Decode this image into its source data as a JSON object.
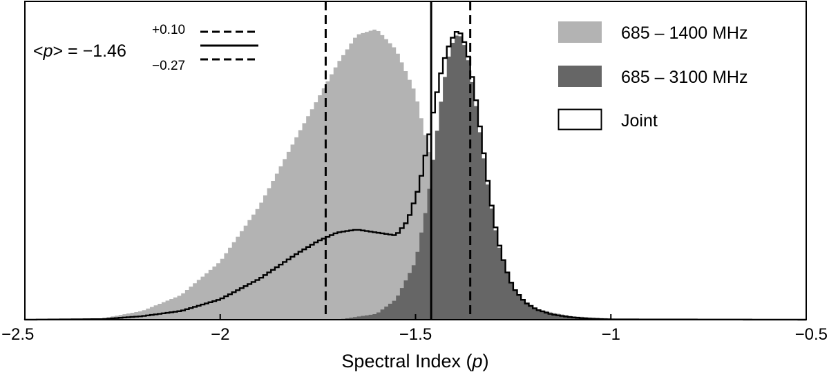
{
  "chart_data": {
    "type": "histogram",
    "xlabel": "Spectral Index",
    "xlabel_var": "p",
    "xlim": [
      -2.5,
      -0.5
    ],
    "xticks": [
      -2.5,
      -2,
      -1.5,
      -1,
      -0.5
    ],
    "xtick_labels": [
      "−2.5",
      "−2",
      "−1.5",
      "−1",
      "−0.5"
    ],
    "yticks_shown": false,
    "legend_position": "top-right",
    "annotation": {
      "lhs_open": "<",
      "lhs_var": "p",
      "lhs_close": "> = ",
      "value": "−1.46",
      "upper": "+0.10",
      "lower": "−0.27",
      "median_x": -1.46,
      "lower_bound_x": -1.73,
      "upper_bound_x": -1.36
    },
    "series": [
      {
        "name": "685 – 1400 MHz",
        "style": "filled",
        "color": "#b3b3b3",
        "x": [
          -2.5,
          -2.3,
          -2.2,
          -2.1,
          -2.0,
          -1.9,
          -1.8,
          -1.75,
          -1.7,
          -1.65,
          -1.6,
          -1.55,
          -1.5,
          -1.45,
          -1.4,
          -1.35,
          -1.3,
          -1.25,
          -1.2,
          -1.15,
          -1.1,
          -1.0,
          -0.9,
          -0.5
        ],
        "y": [
          0.0,
          0.005,
          0.03,
          0.085,
          0.2,
          0.39,
          0.64,
          0.76,
          0.88,
          0.98,
          1.0,
          0.93,
          0.78,
          0.49,
          0.3,
          0.19,
          0.12,
          0.07,
          0.04,
          0.025,
          0.012,
          0.004,
          0.001,
          0.0
        ]
      },
      {
        "name": "685 – 3100 MHz",
        "style": "filled",
        "color": "#666666",
        "x": [
          -2.5,
          -1.7,
          -1.6,
          -1.55,
          -1.5,
          -1.47,
          -1.45,
          -1.43,
          -1.41,
          -1.39,
          -1.37,
          -1.35,
          -1.33,
          -1.31,
          -1.29,
          -1.27,
          -1.25,
          -1.22,
          -1.19,
          -1.15,
          -1.1,
          -1.05,
          -1.0,
          -0.5
        ],
        "y": [
          0.0,
          0.0,
          0.02,
          0.07,
          0.2,
          0.4,
          0.6,
          0.8,
          0.94,
          0.99,
          0.93,
          0.78,
          0.6,
          0.42,
          0.27,
          0.18,
          0.11,
          0.06,
          0.035,
          0.018,
          0.008,
          0.003,
          0.001,
          0.0
        ]
      },
      {
        "name": "Joint",
        "style": "step",
        "color": "#000000",
        "x": [
          -2.5,
          -2.3,
          -2.2,
          -2.1,
          -2.0,
          -1.9,
          -1.8,
          -1.75,
          -1.7,
          -1.65,
          -1.6,
          -1.55,
          -1.52,
          -1.49,
          -1.47,
          -1.45,
          -1.43,
          -1.41,
          -1.39,
          -1.37,
          -1.35,
          -1.33,
          -1.31,
          -1.29,
          -1.27,
          -1.25,
          -1.22,
          -1.19,
          -1.15,
          -1.1,
          -1.05,
          -1.0,
          -0.5
        ],
        "y": [
          0.0,
          0.002,
          0.012,
          0.03,
          0.07,
          0.14,
          0.23,
          0.27,
          0.3,
          0.31,
          0.3,
          0.29,
          0.34,
          0.46,
          0.6,
          0.75,
          0.88,
          0.96,
          1.0,
          0.94,
          0.8,
          0.62,
          0.43,
          0.28,
          0.18,
          0.11,
          0.06,
          0.035,
          0.018,
          0.008,
          0.003,
          0.001,
          0.0
        ]
      }
    ]
  }
}
